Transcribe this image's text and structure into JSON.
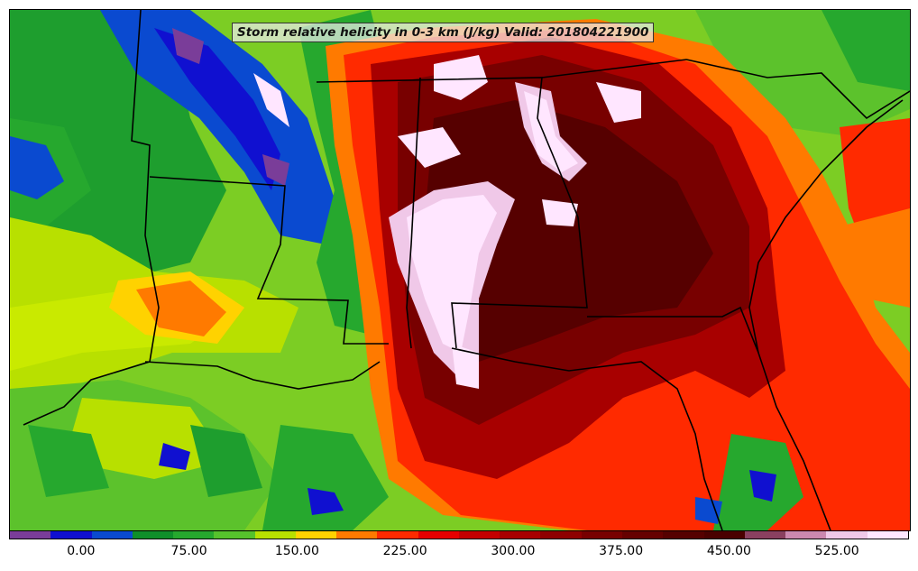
{
  "title": "Storm relative helicity in 0-3 km (J/kg) Valid: 201804221900",
  "colorbar": {
    "colors": [
      "#7a3d99",
      "#1010d0",
      "#0a4ad0",
      "#0f8f2a",
      "#26a82e",
      "#56c22c",
      "#b8e000",
      "#ffd200",
      "#ff7a00",
      "#ff2a00",
      "#e60000",
      "#c40000",
      "#a80000",
      "#8e0000",
      "#780000",
      "#660000",
      "#560000",
      "#4a0000",
      "#8a4060",
      "#cc88b0",
      "#f0c8e8",
      "#ffe6ff"
    ],
    "tick_labels": [
      "0.00",
      "75.00",
      "150.00",
      "225.00",
      "300.00",
      "375.00",
      "450.00",
      "525.00"
    ],
    "tick_values": [
      0,
      75,
      150,
      225,
      300,
      375,
      450,
      525
    ],
    "range": [
      -50,
      575
    ]
  }
}
